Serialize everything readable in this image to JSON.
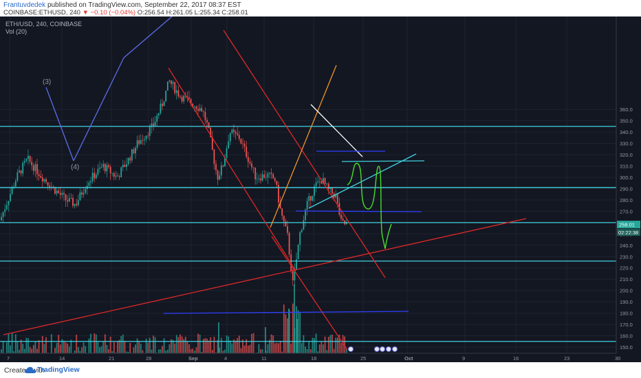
{
  "header": {
    "author": "Frantuvdedek",
    "published": "published on TradingView.com, September 22, 2017 08:37 EST",
    "symbol_line": "COINBASE:ETHUSD, 240",
    "change": "▼ −0.10 (−0.04%)",
    "ohlc": "O:256.54 H:261.05 L:255.34 C:258.01"
  },
  "chart_legend": {
    "title": "ETH/USD, 240, COINBASE",
    "vol": "Vol (20)"
  },
  "footer": {
    "created_with": "Created with",
    "brand": "TradingView"
  },
  "colors": {
    "background": "#131722",
    "up": "#26a69a",
    "down": "#ef5350",
    "cyan": "#3fd3e0",
    "red": "#e02828",
    "orange": "#f0952a",
    "white": "#ffffff",
    "blue": "#3040ff",
    "green": "#49e02a",
    "price_tag": "#26a69a"
  },
  "chart_data": {
    "type": "candlestick",
    "title": "ETH/USD, 240, COINBASE",
    "y_axis": {
      "ticks": [
        150,
        160,
        170,
        180,
        190,
        200,
        210,
        220,
        230,
        240,
        250,
        260,
        270,
        280,
        290,
        300,
        310,
        320,
        330,
        340,
        350,
        360
      ],
      "range": [
        148,
        364
      ]
    },
    "x_axis": {
      "tick_labels": [
        "7",
        "14",
        "21",
        "28",
        "Sep",
        "4",
        "11",
        "18",
        "25",
        "Oct",
        "9",
        "16",
        "23",
        "30"
      ]
    },
    "last_price": {
      "label": "258.01",
      "value": 258.01
    },
    "timer": {
      "label": "02:22:38"
    },
    "wave_labels": [
      "(3)",
      "(4)"
    ],
    "horizontal_levels": [
      345,
      291,
      260,
      226,
      155
    ],
    "close_path_approx": [
      {
        "t": "Aug 7",
        "price": 262
      },
      {
        "t": "Aug 11",
        "price": 300
      },
      {
        "t": "Aug 14",
        "price": 316
      },
      {
        "t": "Aug 17",
        "price": 276
      },
      {
        "t": "Aug 21",
        "price": 310
      },
      {
        "t": "Aug 24",
        "price": 300
      },
      {
        "t": "Aug 28",
        "price": 340
      },
      {
        "t": "Aug 31",
        "price": 385
      },
      {
        "t": "Sep 2",
        "price": 360
      },
      {
        "t": "Sep 4",
        "price": 310
      },
      {
        "t": "Sep 6",
        "price": 340
      },
      {
        "t": "Sep 9",
        "price": 310
      },
      {
        "t": "Sep 12",
        "price": 300
      },
      {
        "t": "Sep 14",
        "price": 260
      },
      {
        "t": "Sep 15",
        "price": 205
      },
      {
        "t": "Sep 16",
        "price": 250
      },
      {
        "t": "Sep 18",
        "price": 290
      },
      {
        "t": "Sep 20",
        "price": 282
      },
      {
        "t": "Sep 22",
        "price": 258
      }
    ]
  }
}
